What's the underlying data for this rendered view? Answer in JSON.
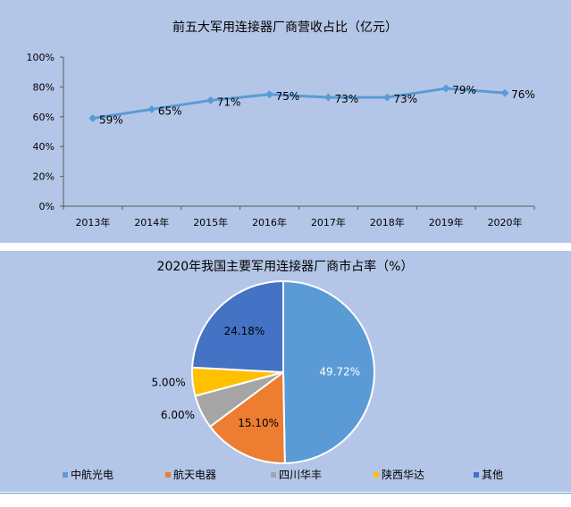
{
  "chart_data": [
    {
      "type": "line",
      "title": "前五大军用连接器厂商营收占比（亿元）",
      "categories": [
        "2013年",
        "2014年",
        "2015年",
        "2016年",
        "2017年",
        "2018年",
        "2019年",
        "2020年"
      ],
      "series": [
        {
          "values": [
            59,
            65,
            71,
            75,
            73,
            73,
            79,
            76
          ]
        }
      ],
      "data_labels": [
        "59%",
        "65%",
        "71%",
        "75%",
        "73%",
        "73%",
        "79%",
        "76%"
      ],
      "ylim": [
        0,
        100
      ],
      "yticks": [
        "0%",
        "20%",
        "40%",
        "60%",
        "80%",
        "100%"
      ],
      "ytick_values": [
        0,
        20,
        40,
        60,
        80,
        100
      ],
      "grid": false,
      "color": "#5b9bd5"
    },
    {
      "type": "pie",
      "title": "2020年我国主要军用连接器厂商市占率（%）",
      "slices": [
        {
          "name": "中航光电",
          "value": 49.72,
          "label": "49.72%",
          "color": "#5b9bd5",
          "label_color": "#ffffff"
        },
        {
          "name": "航天电器",
          "value": 15.1,
          "label": "15.10%",
          "color": "#ed7d31",
          "label_color": "#000000"
        },
        {
          "name": "四川华丰",
          "value": 6.0,
          "label": "6.00%",
          "color": "#a5a5a5",
          "label_color": "#000000"
        },
        {
          "name": "陕西华达",
          "value": 5.0,
          "label": "5.00%",
          "color": "#ffc000",
          "label_color": "#000000"
        },
        {
          "name": "其他",
          "value": 24.18,
          "label": "24.18%",
          "color": "#4472c4",
          "label_color": "#000000"
        }
      ],
      "legend_position": "bottom"
    }
  ]
}
